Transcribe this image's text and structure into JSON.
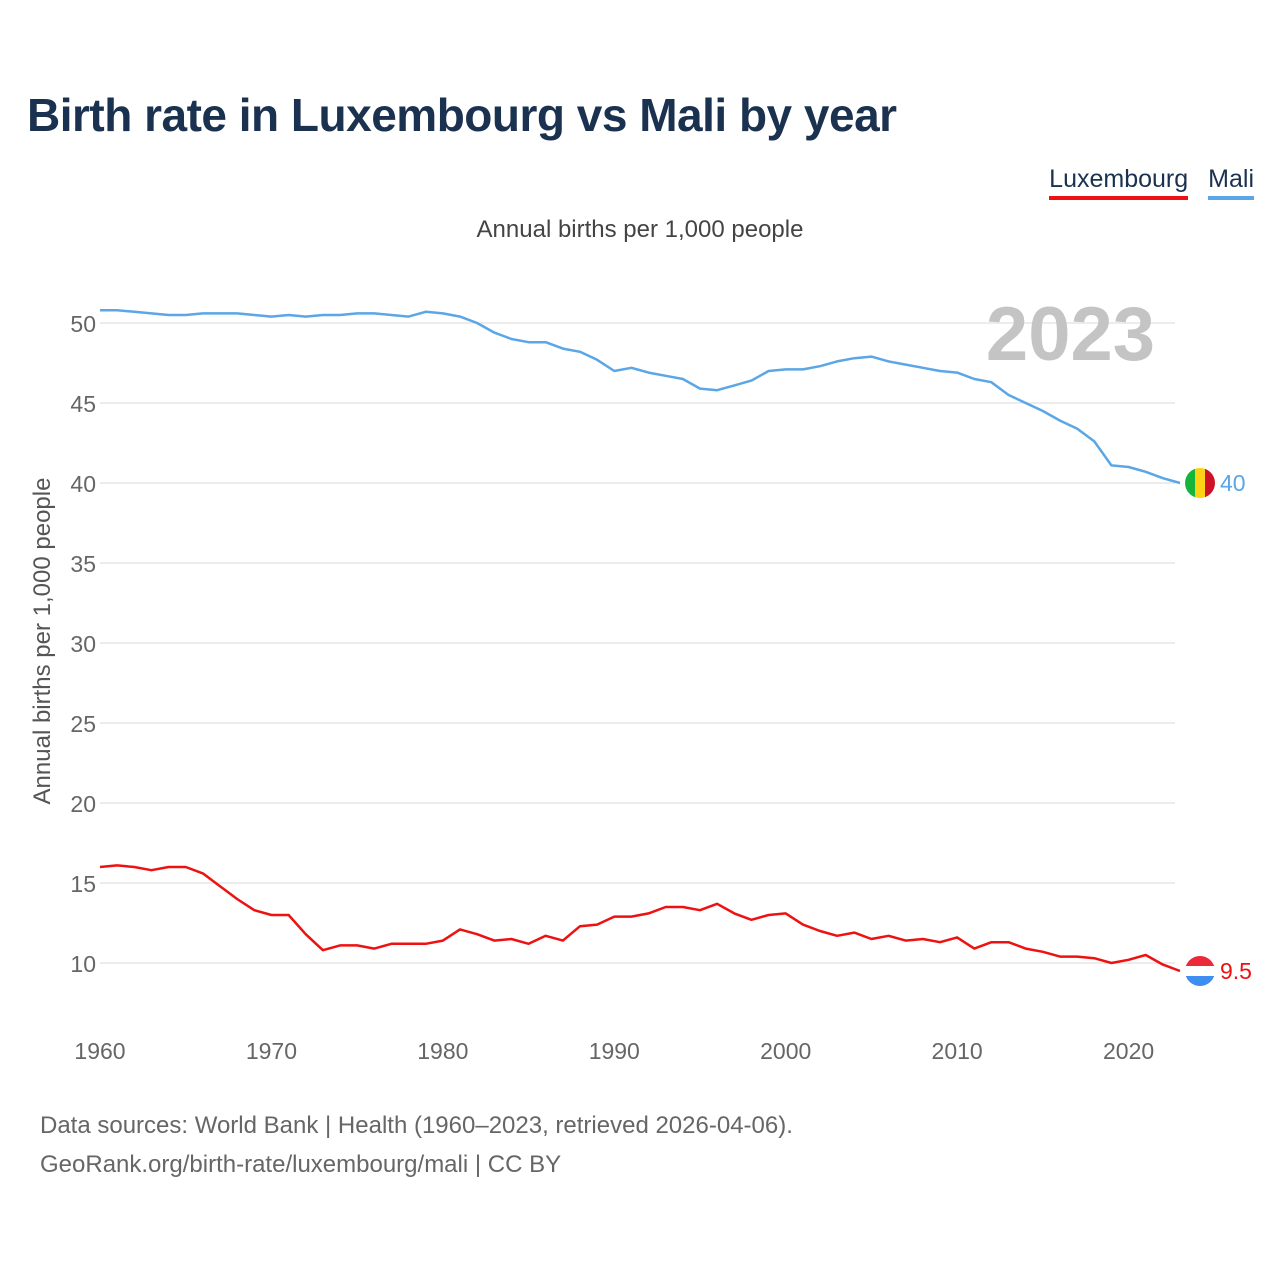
{
  "header": {
    "title": "Birth rate in Luxembourg vs Mali by year",
    "subtitle": "Annual births per 1,000 people"
  },
  "legend": {
    "items": [
      {
        "label": "Luxembourg",
        "color": "#ee1111"
      },
      {
        "label": "Mali",
        "color": "#5aa6e6"
      }
    ]
  },
  "chart_data": {
    "type": "line",
    "title": "Birth rate in Luxembourg vs Mali by year",
    "subtitle": "Annual births per 1,000 people",
    "xlabel": "",
    "ylabel": "Annual births per 1,000 people",
    "year_label": "2023",
    "xlim": [
      1960,
      2023
    ],
    "ylim": [
      7,
      53
    ],
    "x_ticks": [
      1960,
      1970,
      1980,
      1990,
      2000,
      2010,
      2020
    ],
    "y_ticks": [
      10,
      15,
      20,
      25,
      30,
      35,
      40,
      45,
      50
    ],
    "grid": true,
    "legend_position": "top-right",
    "x": [
      1960,
      1961,
      1962,
      1963,
      1964,
      1965,
      1966,
      1967,
      1968,
      1969,
      1970,
      1971,
      1972,
      1973,
      1974,
      1975,
      1976,
      1977,
      1978,
      1979,
      1980,
      1981,
      1982,
      1983,
      1984,
      1985,
      1986,
      1987,
      1988,
      1989,
      1990,
      1991,
      1992,
      1993,
      1994,
      1995,
      1996,
      1997,
      1998,
      1999,
      2000,
      2001,
      2002,
      2003,
      2004,
      2005,
      2006,
      2007,
      2008,
      2009,
      2010,
      2011,
      2012,
      2013,
      2014,
      2015,
      2016,
      2017,
      2018,
      2019,
      2020,
      2021,
      2022,
      2023
    ],
    "series": [
      {
        "name": "Luxembourg",
        "color": "#ee1111",
        "end_label": "9.5",
        "values": [
          16.0,
          16.1,
          16.0,
          15.8,
          16.0,
          16.0,
          15.6,
          14.8,
          14.0,
          13.3,
          13.0,
          13.0,
          11.8,
          10.8,
          11.1,
          11.1,
          10.9,
          11.2,
          11.2,
          11.2,
          11.4,
          12.1,
          11.8,
          11.4,
          11.5,
          11.2,
          11.7,
          11.4,
          12.3,
          12.4,
          12.9,
          12.9,
          13.1,
          13.5,
          13.5,
          13.3,
          13.7,
          13.1,
          12.7,
          13.0,
          13.1,
          12.4,
          12.0,
          11.7,
          11.9,
          11.5,
          11.7,
          11.4,
          11.5,
          11.3,
          11.6,
          10.9,
          11.3,
          11.3,
          10.9,
          10.7,
          10.4,
          10.4,
          10.3,
          10.0,
          10.2,
          10.5,
          9.9,
          9.5
        ]
      },
      {
        "name": "Mali",
        "color": "#5aa6e6",
        "end_label": "40",
        "values": [
          50.8,
          50.8,
          50.7,
          50.6,
          50.5,
          50.5,
          50.6,
          50.6,
          50.6,
          50.5,
          50.4,
          50.5,
          50.4,
          50.5,
          50.5,
          50.6,
          50.6,
          50.5,
          50.4,
          50.7,
          50.6,
          50.4,
          50.0,
          49.4,
          49.0,
          48.8,
          48.8,
          48.4,
          48.2,
          47.7,
          47.0,
          47.2,
          46.9,
          46.7,
          46.5,
          45.9,
          45.8,
          46.1,
          46.4,
          47.0,
          47.1,
          47.1,
          47.3,
          47.6,
          47.8,
          47.9,
          47.6,
          47.4,
          47.2,
          47.0,
          46.9,
          46.5,
          46.3,
          45.5,
          45.0,
          44.5,
          43.9,
          43.4,
          42.6,
          41.1,
          41.0,
          40.7,
          40.3,
          40.0
        ]
      }
    ]
  },
  "footer": {
    "line1": "Data sources: World Bank | Health (1960–2023, retrieved 2026-04-06).",
    "line2": "GeoRank.org/birth-rate/luxembourg/mali | CC BY"
  }
}
